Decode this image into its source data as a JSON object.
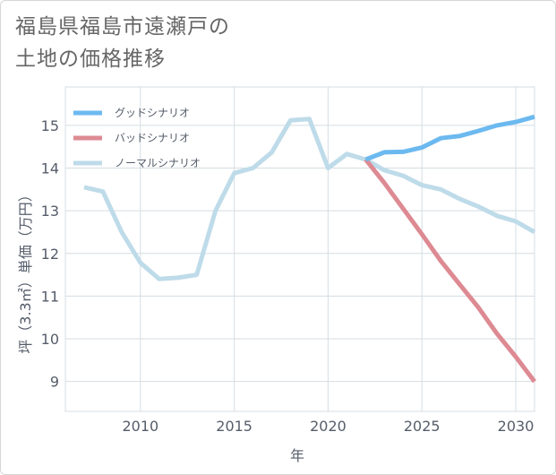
{
  "title": {
    "line1": "福島県福島市遠瀬戸の",
    "line2": "土地の価格推移"
  },
  "chart_data": {
    "type": "line",
    "xlabel": "年",
    "ylabel": "坪（3.3㎡）単価（万円）",
    "xlim": [
      2006,
      2031
    ],
    "ylim": [
      8.3,
      15.9
    ],
    "xticks": [
      2010,
      2015,
      2020,
      2025,
      2030
    ],
    "yticks": [
      9,
      10,
      11,
      12,
      13,
      14,
      15
    ],
    "grid": true,
    "legend_position": "top-left",
    "series": [
      {
        "name": "グッドシナリオ",
        "color": "#6cb9f0",
        "x": [
          2022,
          2023,
          2024,
          2025,
          2026,
          2027,
          2028,
          2029,
          2030,
          2031
        ],
        "y": [
          14.2,
          14.37,
          14.38,
          14.48,
          14.7,
          14.75,
          14.87,
          15.0,
          15.08,
          15.2
        ]
      },
      {
        "name": "バッドシナリオ",
        "color": "#dd8a93",
        "x": [
          2022,
          2023,
          2024,
          2025,
          2026,
          2027,
          2028,
          2029,
          2030,
          2031
        ],
        "y": [
          14.2,
          13.65,
          13.05,
          12.45,
          11.83,
          11.28,
          10.74,
          10.12,
          9.58,
          9.0
        ]
      },
      {
        "name": "ノーマルシナリオ",
        "color": "#bedbe9",
        "x": [
          2007,
          2008,
          2009,
          2010,
          2011,
          2012,
          2013,
          2014,
          2015,
          2016,
          2017,
          2018,
          2019,
          2020,
          2021,
          2022,
          2023,
          2024,
          2025,
          2026,
          2027,
          2028,
          2029,
          2030,
          2031
        ],
        "y": [
          13.55,
          13.45,
          12.5,
          11.78,
          11.4,
          11.43,
          11.5,
          13.0,
          13.88,
          14.0,
          14.37,
          15.12,
          15.15,
          14.0,
          14.33,
          14.2,
          13.95,
          13.82,
          13.6,
          13.5,
          13.28,
          13.1,
          12.88,
          12.75,
          12.5
        ]
      }
    ]
  }
}
